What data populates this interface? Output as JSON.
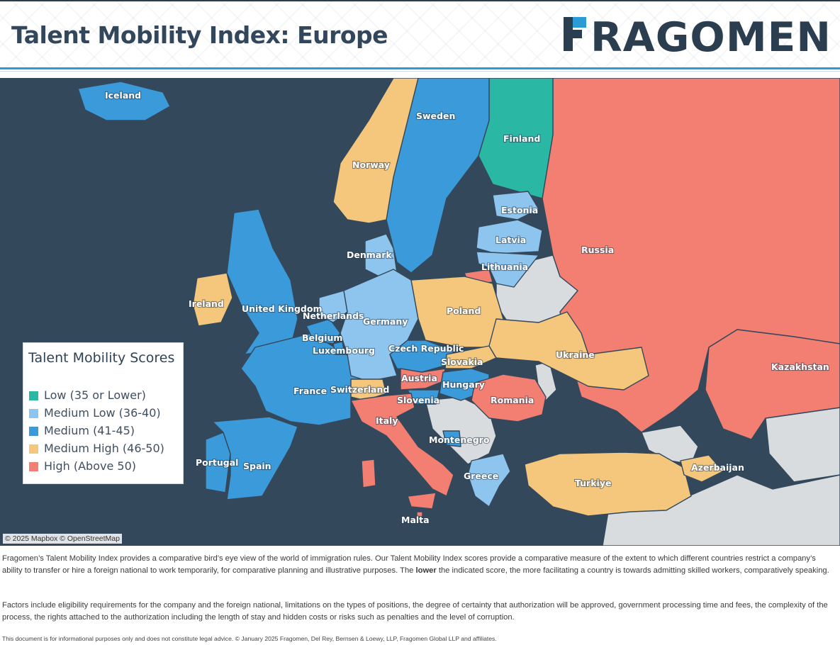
{
  "header": {
    "title": "Talent Mobility Index: Europe",
    "brand": "FRAGOMEN"
  },
  "colors": {
    "water": "#34485c",
    "land_no_data": "#d9dcdf",
    "low": "#2ab7a3",
    "medium_low": "#8ec5ef",
    "medium": "#3b9ad9",
    "medium_high": "#f5c77c",
    "high": "#f27f71",
    "header_rule": "#2b9bd6",
    "title": "#33475c"
  },
  "legend": {
    "title": "Talent Mobility Scores",
    "items": [
      {
        "label": "Low (35 or Lower)",
        "color": "#2ab7a3"
      },
      {
        "label": "Medium Low (36-40)",
        "color": "#8ec5ef"
      },
      {
        "label": "Medium (41-45)",
        "color": "#3b9ad9"
      },
      {
        "label": "Medium High (46-50)",
        "color": "#f5c77c"
      },
      {
        "label": "High (Above 50)",
        "color": "#f27f71"
      }
    ]
  },
  "map": {
    "attribution": "© 2025 Mapbox © OpenStreetMap",
    "countries": {
      "iceland": {
        "name": "Iceland",
        "category": "medium"
      },
      "norway": {
        "name": "Norway",
        "category": "medium_high"
      },
      "sweden": {
        "name": "Sweden",
        "category": "medium"
      },
      "finland": {
        "name": "Finland",
        "category": "low"
      },
      "russia": {
        "name": "Russia",
        "category": "high"
      },
      "kazakhstan": {
        "name": "Kazakhstan",
        "category": "high"
      },
      "estonia": {
        "name": "Estonia",
        "category": "medium_low"
      },
      "latvia": {
        "name": "Latvia",
        "category": "medium_low"
      },
      "lithuania": {
        "name": "Lithuania",
        "category": "medium_low"
      },
      "denmark": {
        "name": "Denmark",
        "category": "medium_low"
      },
      "ireland": {
        "name": "Ireland",
        "category": "medium_high"
      },
      "united_kingdom": {
        "name": "United Kingdom",
        "category": "medium"
      },
      "netherlands": {
        "name": "Netherlands",
        "category": "medium_low"
      },
      "germany": {
        "name": "Germany",
        "category": "medium_low"
      },
      "poland": {
        "name": "Poland",
        "category": "medium_high"
      },
      "belgium": {
        "name": "Belgium",
        "category": "medium"
      },
      "luxembourg": {
        "name": "Luxembourg",
        "category": "medium"
      },
      "czech_republic": {
        "name": "Czech Republic",
        "category": "medium"
      },
      "slovakia": {
        "name": "Slovakia",
        "category": "medium_high"
      },
      "ukraine": {
        "name": "Ukraine",
        "category": "medium_high"
      },
      "austria": {
        "name": "Austria",
        "category": "high"
      },
      "hungary": {
        "name": "Hungary",
        "category": "medium"
      },
      "switzerland": {
        "name": "Switzerland",
        "category": "medium_high"
      },
      "france": {
        "name": "France",
        "category": "medium"
      },
      "slovenia": {
        "name": "Slovenia",
        "category": "medium"
      },
      "romania": {
        "name": "Romania",
        "category": "high"
      },
      "italy": {
        "name": "Italy",
        "category": "high"
      },
      "montenegro": {
        "name": "Montenegro",
        "category": "medium"
      },
      "portugal": {
        "name": "Portugal",
        "category": "medium"
      },
      "spain": {
        "name": "Spain",
        "category": "medium"
      },
      "greece": {
        "name": "Greece",
        "category": "medium_low"
      },
      "turkiye": {
        "name": "Turkiye",
        "category": "medium_high"
      },
      "azerbaijan": {
        "name": "Azerbaijan",
        "category": "medium_high"
      },
      "malta": {
        "name": "Malta",
        "category": "high"
      }
    }
  },
  "footer": {
    "para1_before_bold": "Fragomen’s Talent Mobility Index provides a comparative bird’s eye view of the world of immigration rules. Our Talent Mobility Index scores provide a comparative measure of the extent to which different countries restrict a company’s ability to transfer or hire a foreign national to work temporarily, for comparative planning and illustrative purposes. The ",
    "para1_bold": "lower",
    "para1_after_bold": " the indicated score, the more facilitating a country is towards admitting skilled workers, comparatively speaking.",
    "para2": "Factors include eligibility requirements for the company and the foreign national, limitations on the types of positions, the degree of certainty that authorization will be approved, government processing time and fees, the complexity of the process, the rights attached to the authorization including the length of stay and hidden costs or risks such as penalties and the level of corruption.",
    "disclaimer": "This document is for informational purposes only and does not constitute legal advice. © January 2025 Fragomen, Del Rey, Bernsen & Loewy, LLP, Fragomen Global LLP and affiliates."
  }
}
